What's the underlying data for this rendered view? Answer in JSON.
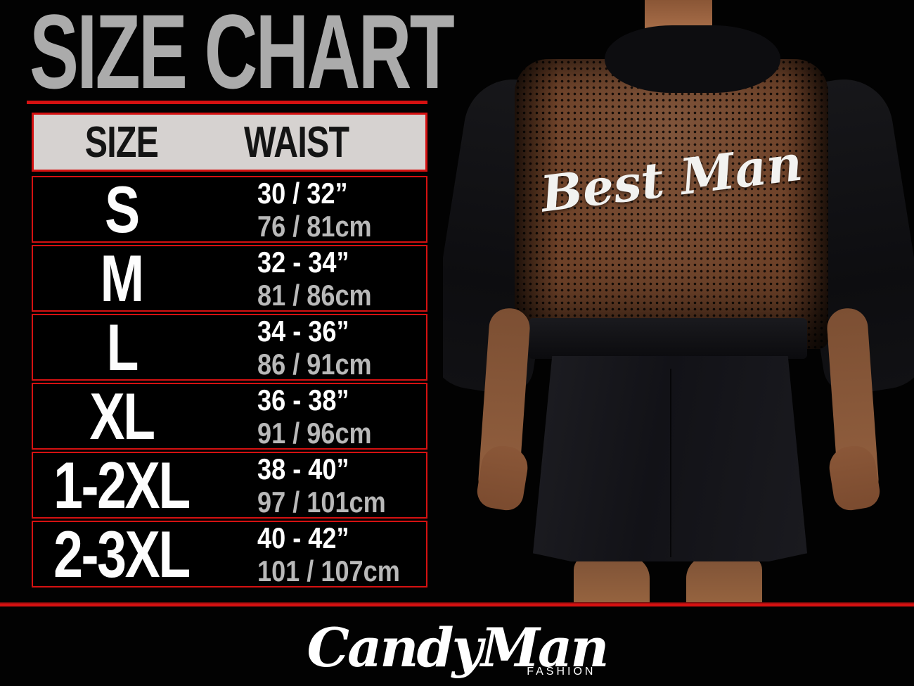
{
  "title": "SIZE CHART",
  "table": {
    "header": {
      "size": "SIZE",
      "waist": "WAIST"
    },
    "rows": [
      {
        "size": "S",
        "waist_in": "30 / 32”",
        "waist_cm": "76 / 81cm"
      },
      {
        "size": "M",
        "waist_in": "32 - 34”",
        "waist_cm": "81 / 86cm"
      },
      {
        "size": "L",
        "waist_in": "34 - 36”",
        "waist_cm": "86 / 91cm"
      },
      {
        "size": "XL",
        "waist_in": "36 - 38”",
        "waist_cm": "91 / 96cm"
      },
      {
        "size": "1-2XL",
        "waist_in": "38 - 40”",
        "waist_cm": "97 / 101cm"
      },
      {
        "size": "2-3XL",
        "waist_in": "40 - 42”",
        "waist_cm": "101 / 107cm"
      }
    ]
  },
  "photo": {
    "garment_text": "Best Man"
  },
  "brand": {
    "name": "CandyMan",
    "tagline": "FASHION"
  },
  "colors": {
    "background": "#000000",
    "accent_red": "#d51111",
    "title_gray": "#ababab",
    "header_bar_bg": "#d6d2d0",
    "inches_text": "#ffffff",
    "cm_text": "#b9b9b9",
    "mesh_skin": "#6d4128"
  },
  "chart_data": {
    "type": "table",
    "title": "SIZE CHART",
    "columns": [
      "SIZE",
      "WAIST (inches)",
      "WAIST (cm)"
    ],
    "rows": [
      [
        "S",
        "30 / 32\"",
        "76 / 81cm"
      ],
      [
        "M",
        "32 - 34\"",
        "81 / 86cm"
      ],
      [
        "L",
        "34 - 36\"",
        "86 / 91cm"
      ],
      [
        "XL",
        "36 - 38\"",
        "91 / 96cm"
      ],
      [
        "1-2XL",
        "38 - 40\"",
        "97 / 101cm"
      ],
      [
        "2-3XL",
        "40 - 42\"",
        "101 / 107cm"
      ]
    ]
  }
}
